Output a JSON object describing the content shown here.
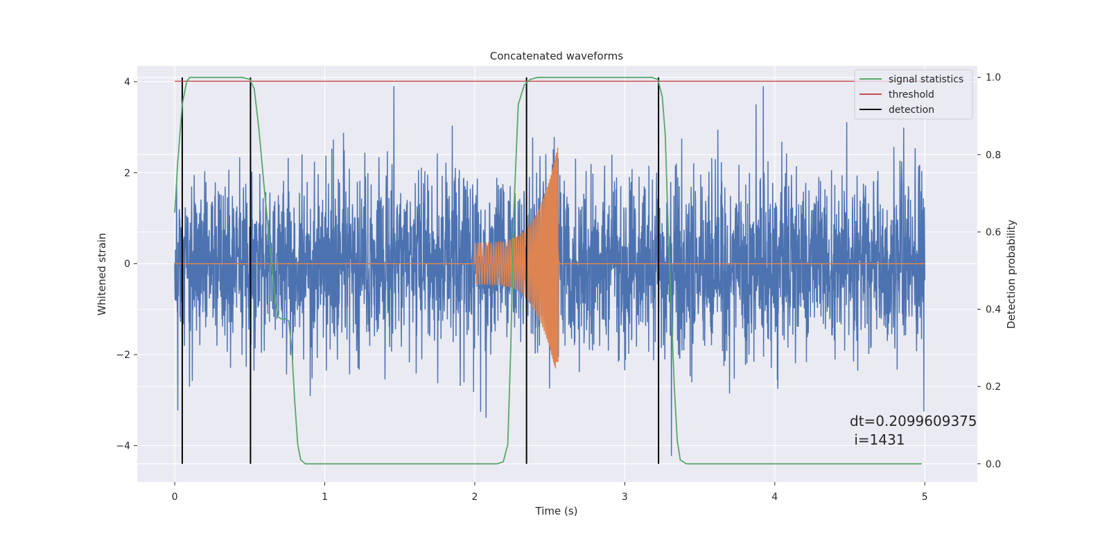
{
  "chart_data": {
    "type": "line",
    "title": "Concatenated waveforms",
    "xlabel": "Time (s)",
    "ylabel": "Whitened strain",
    "y2label": "Detection probability",
    "xlim": [
      -0.25,
      5.35
    ],
    "ylim": [
      -4.8,
      4.35
    ],
    "y2lim": [
      -0.047,
      1.03
    ],
    "xticks": [
      0,
      1,
      2,
      3,
      4,
      5
    ],
    "xtick_labels": [
      "0",
      "1",
      "2",
      "3",
      "4",
      "5"
    ],
    "yticks": [
      -4,
      -2,
      0,
      2,
      4
    ],
    "ytick_labels": [
      "−4",
      "−2",
      "0",
      "2",
      "4"
    ],
    "y2ticks": [
      0.0,
      0.2,
      0.4,
      0.6,
      0.8,
      1.0
    ],
    "y2tick_labels": [
      "0.0",
      "0.2",
      "0.4",
      "0.6",
      "0.8",
      "1.0"
    ],
    "grid": true,
    "legend_position": "top-right",
    "legend": [
      {
        "label": "signal statistics",
        "color": "#55a868"
      },
      {
        "label": "threshold",
        "color": "#c44e52"
      },
      {
        "label": "detection",
        "color": "#000000"
      }
    ],
    "noise_series": {
      "color": "#4c72b0",
      "x_range": [
        0,
        5
      ],
      "y_range": [
        -4.4,
        3.9
      ]
    },
    "waveform_series": {
      "color": "#dd8452",
      "start": 2.0,
      "merger": 2.555,
      "end": 2.56,
      "start_amplitude": 0.45,
      "peak_amplitude": 2.6,
      "trough_amplitude": -2.15
    },
    "signal_statistics": {
      "color": "#55a868",
      "points": [
        [
          0.0,
          0.65
        ],
        [
          0.02,
          0.78
        ],
        [
          0.05,
          0.93
        ],
        [
          0.08,
          0.99
        ],
        [
          0.1,
          1.0
        ],
        [
          0.45,
          1.0
        ],
        [
          0.5,
          0.995
        ],
        [
          0.53,
          0.97
        ],
        [
          0.56,
          0.87
        ],
        [
          0.6,
          0.7
        ],
        [
          0.64,
          0.54
        ],
        [
          0.67,
          0.42
        ],
        [
          0.69,
          0.38
        ],
        [
          0.71,
          0.375
        ],
        [
          0.74,
          0.375
        ],
        [
          0.76,
          0.37
        ],
        [
          0.78,
          0.3
        ],
        [
          0.8,
          0.16
        ],
        [
          0.82,
          0.05
        ],
        [
          0.84,
          0.01
        ],
        [
          0.87,
          0.0
        ],
        [
          2.15,
          0.0
        ],
        [
          2.19,
          0.005
        ],
        [
          2.22,
          0.05
        ],
        [
          2.24,
          0.3
        ],
        [
          2.26,
          0.65
        ],
        [
          2.29,
          0.93
        ],
        [
          2.33,
          0.98
        ],
        [
          2.37,
          0.995
        ],
        [
          2.42,
          1.0
        ],
        [
          3.18,
          1.0
        ],
        [
          3.22,
          0.995
        ],
        [
          3.25,
          0.95
        ],
        [
          3.27,
          0.85
        ],
        [
          3.29,
          0.6
        ],
        [
          3.31,
          0.4
        ],
        [
          3.33,
          0.2
        ],
        [
          3.35,
          0.06
        ],
        [
          3.37,
          0.01
        ],
        [
          3.41,
          0.0
        ],
        [
          4.98,
          0.0
        ]
      ]
    },
    "threshold": {
      "color": "#c44e52",
      "value": 0.99,
      "x_range": [
        0,
        5
      ]
    },
    "detections": {
      "color": "#000000",
      "x": [
        0.05,
        0.505,
        2.345,
        3.225
      ],
      "prob_range": [
        0.0,
        1.0
      ]
    }
  },
  "annotation": {
    "dt_text": "dt=0.2099609375",
    "i_text": " i=1431"
  }
}
